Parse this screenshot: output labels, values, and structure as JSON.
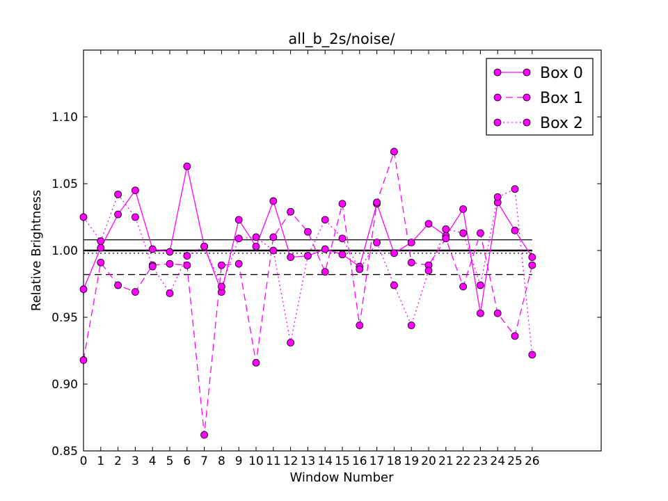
{
  "chart_data": {
    "type": "line",
    "title": "all_b_2s/noise/",
    "xlabel": "Window Number",
    "ylabel": "Relative Brightness",
    "xlim": [
      0,
      30
    ],
    "ylim": [
      0.85,
      1.15
    ],
    "xticks": [
      0,
      1,
      2,
      3,
      4,
      5,
      6,
      7,
      8,
      9,
      10,
      11,
      12,
      13,
      14,
      15,
      16,
      17,
      18,
      19,
      20,
      21,
      22,
      23,
      24,
      25,
      26
    ],
    "yticks": [
      0.85,
      0.9,
      0.95,
      1.0,
      1.05,
      1.1
    ],
    "ytick_labels": [
      "0.85",
      "0.90",
      "0.95",
      "1.00",
      "1.05",
      "1.10"
    ],
    "grid": false,
    "legend_position": "top-right",
    "x": [
      0,
      1,
      2,
      3,
      4,
      5,
      6,
      7,
      8,
      9,
      10,
      11,
      12,
      13,
      14,
      15,
      16,
      17,
      18,
      19,
      20,
      21,
      22,
      23,
      24,
      25,
      26
    ],
    "series": [
      {
        "name": "Box 0",
        "style": "solid",
        "color": "#ff00ff",
        "values": [
          0.971,
          1.002,
          1.027,
          1.045,
          1.001,
          0.999,
          1.063,
          1.003,
          0.969,
          1.023,
          1.003,
          1.037,
          0.995,
          0.996,
          1.001,
          0.997,
          0.988,
          1.035,
          0.998,
          1.006,
          1.02,
          1.011,
          1.031,
          0.953,
          1.036,
          1.015,
          0.995
        ]
      },
      {
        "name": "Box 1",
        "style": "dashed",
        "color": "#ff00ff",
        "values": [
          0.918,
          0.991,
          0.974,
          0.969,
          0.989,
          0.99,
          0.989,
          0.862,
          0.989,
          0.99,
          0.916,
          1.01,
          1.029,
          1.014,
          0.984,
          1.035,
          0.944,
          1.036,
          1.074,
          0.991,
          0.989,
          1.009,
          0.973,
          1.013,
          0.953,
          0.936,
          0.989
        ]
      },
      {
        "name": "Box 2",
        "style": "dotted",
        "color": "#ff00ff",
        "values": [
          1.025,
          1.007,
          1.042,
          1.025,
          0.988,
          0.968,
          0.996,
          1.003,
          0.973,
          1.009,
          1.01,
          1.0,
          0.931,
          0.996,
          1.023,
          1.009,
          0.986,
          1.006,
          0.974,
          0.944,
          0.985,
          1.016,
          1.013,
          0.974,
          1.04,
          1.046,
          0.922
        ]
      }
    ],
    "reference_lines": [
      {
        "y": 1.0,
        "style": "solid",
        "weight": "thick",
        "color": "#000000"
      },
      {
        "y": 1.008,
        "style": "solid",
        "weight": "thin",
        "color": "#000000"
      },
      {
        "y": 0.998,
        "style": "dotted",
        "weight": "thin",
        "color": "#000000"
      },
      {
        "y": 0.982,
        "style": "dashed",
        "weight": "thin",
        "color": "#000000"
      }
    ]
  }
}
